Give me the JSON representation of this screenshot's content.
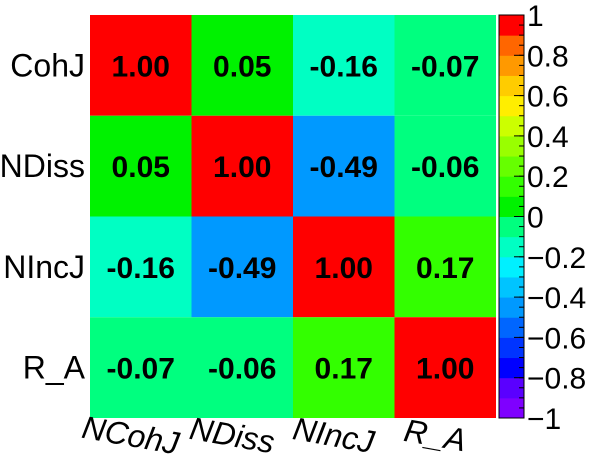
{
  "chart_data": {
    "type": "heatmap",
    "title": "",
    "variables": [
      "NCohJ",
      "NDiss",
      "NIncJ",
      "R_A"
    ],
    "y_tick_labels_visible": [
      "CohJ",
      "NDiss",
      "NIncJ",
      "R_A"
    ],
    "x_tick_labels_visible": [
      "NCohJ",
      "NDiss",
      "NIncJ",
      "R_A"
    ],
    "matrix": [
      [
        1.0,
        0.05,
        -0.16,
        -0.07
      ],
      [
        0.05,
        1.0,
        -0.49,
        -0.06
      ],
      [
        -0.16,
        -0.49,
        1.0,
        0.17
      ],
      [
        -0.07,
        -0.06,
        0.17,
        1.0
      ]
    ],
    "value_format": "0.00",
    "zlim": [
      -1,
      1
    ],
    "colorbar": {
      "position": "right",
      "tick_values": [
        1,
        0.8,
        0.6,
        0.4,
        0.2,
        0,
        -0.2,
        -0.4,
        -0.6,
        -0.8,
        -1
      ],
      "tick_labels": [
        "1",
        "0.8",
        "0.6",
        "0.4",
        "0.2",
        "0",
        "−0.2",
        "−0.4",
        "−0.6",
        "−0.8",
        "−1"
      ],
      "n_bands": 20,
      "band_colors_low_to_high": [
        "#7f00ff",
        "#5a00ff",
        "#0000ff",
        "#0034ff",
        "#0066ff",
        "#0099ff",
        "#00c4ff",
        "#00f0ff",
        "#00ffc3",
        "#00ff7f",
        "#00f200",
        "#33ff00",
        "#66ff00",
        "#99ff00",
        "#ccff00",
        "#ffee00",
        "#ffcc00",
        "#ff9900",
        "#ff6600",
        "#ff0000"
      ]
    },
    "grid": false
  }
}
